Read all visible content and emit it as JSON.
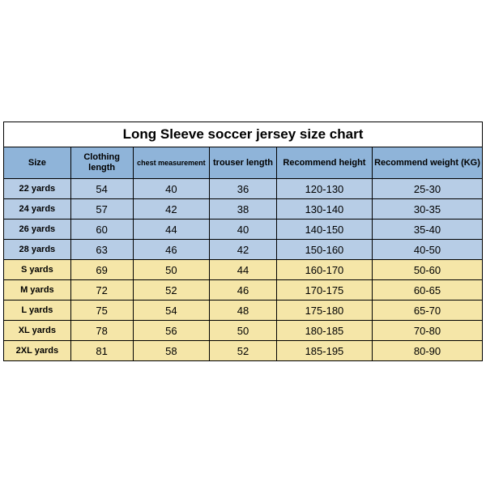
{
  "title": "Long Sleeve soccer jersey size chart",
  "columns": [
    {
      "label": "Size",
      "width": "14%",
      "small": false
    },
    {
      "label": "Clothing length",
      "width": "13%",
      "small": false
    },
    {
      "label": "chest measurement",
      "width": "16%",
      "small": true
    },
    {
      "label": "trouser length",
      "width": "14%",
      "small": false
    },
    {
      "label": "Recommend height",
      "width": "20%",
      "small": false
    },
    {
      "label": "Recommend weight (KG)",
      "width": "23%",
      "small": false
    }
  ],
  "rows": [
    {
      "band": "blue",
      "cells": [
        "22 yards",
        "54",
        "40",
        "36",
        "120-130",
        "25-30"
      ]
    },
    {
      "band": "blue",
      "cells": [
        "24 yards",
        "57",
        "42",
        "38",
        "130-140",
        "30-35"
      ]
    },
    {
      "band": "blue",
      "cells": [
        "26 yards",
        "60",
        "44",
        "40",
        "140-150",
        "35-40"
      ]
    },
    {
      "band": "blue",
      "cells": [
        "28 yards",
        "63",
        "46",
        "42",
        "150-160",
        "40-50"
      ]
    },
    {
      "band": "yellow",
      "cells": [
        "S yards",
        "69",
        "50",
        "44",
        "160-170",
        "50-60"
      ]
    },
    {
      "band": "yellow",
      "cells": [
        "M yards",
        "72",
        "52",
        "46",
        "170-175",
        "60-65"
      ]
    },
    {
      "band": "yellow",
      "cells": [
        "L yards",
        "75",
        "54",
        "48",
        "175-180",
        "65-70"
      ]
    },
    {
      "band": "yellow",
      "cells": [
        "XL yards",
        "78",
        "56",
        "50",
        "180-185",
        "70-80"
      ]
    },
    {
      "band": "yellow",
      "cells": [
        "2XL yards",
        "81",
        "58",
        "52",
        "185-195",
        "80-90"
      ]
    }
  ],
  "colors": {
    "header_bg": "#8fb4d9",
    "blue_bg": "#b7cde6",
    "yellow_bg": "#f5e6a8",
    "border": "#000000",
    "page_bg": "#ffffff"
  }
}
